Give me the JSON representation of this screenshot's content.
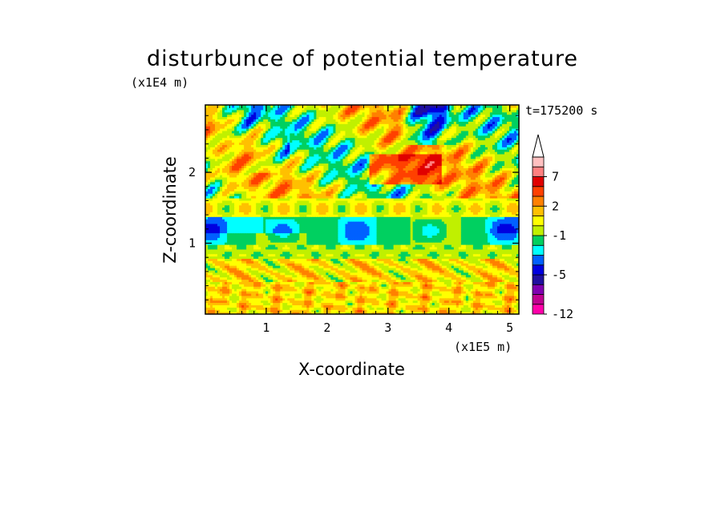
{
  "chart_data": {
    "type": "heatmap",
    "title": "disturbunce of potential temperature",
    "xlabel": "X-coordinate",
    "ylabel": "Z-coordinate",
    "x_unit": "(x1E5 m)",
    "y_unit": "(x1E4 m)",
    "annotation": "t=175200 s",
    "xlim": [
      0,
      5.15
    ],
    "ylim": [
      0,
      2.95
    ],
    "x_ticks": [
      1,
      2,
      3,
      4,
      5
    ],
    "x_tick_labels": [
      "1",
      "2",
      "3",
      "4",
      "5"
    ],
    "y_ticks": [
      1,
      2
    ],
    "y_tick_labels": [
      "1",
      "2"
    ],
    "colorbar": {
      "levels": [
        -12,
        -10,
        -8,
        -6,
        -5,
        -4,
        -3,
        -2,
        -1,
        0,
        1,
        2,
        3,
        5,
        7,
        9
      ],
      "tick_values": [
        -12,
        -5,
        -1,
        2,
        7
      ],
      "tick_labels": [
        "-12",
        "-5",
        "-1",
        "2",
        "7"
      ],
      "colors": [
        "#ff00aa",
        "#c00090",
        "#8000b0",
        "#2010a0",
        "#0000e0",
        "#0060ff",
        "#00ffff",
        "#00d060",
        "#c0f000",
        "#ffff00",
        "#ffc000",
        "#ff8000",
        "#ff4000",
        "#e00000",
        "#ff8080",
        "#ffc0c0"
      ],
      "extend": "max"
    }
  }
}
